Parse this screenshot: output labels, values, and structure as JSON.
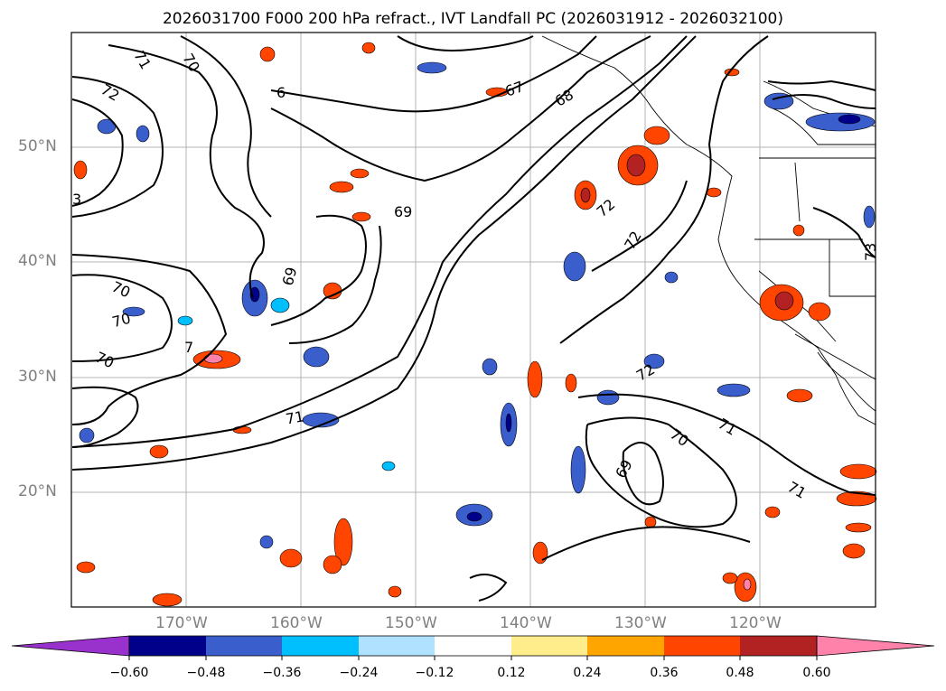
{
  "title": "2026031700 F000 200 hPa refract., IVT Landfall PC (2026031912 - 2026032100)",
  "map": {
    "lat_labels": [
      "50°N",
      "40°N",
      "30°N",
      "20°N"
    ],
    "lon_labels": [
      "170°W",
      "160°W",
      "150°W",
      "140°W",
      "130°W",
      "120°W"
    ],
    "contour_labels": [
      "71",
      "70",
      "72",
      "3",
      "6",
      "67",
      "68",
      "69",
      "70",
      "70",
      "7",
      "70",
      "69",
      "72",
      "72",
      "71",
      "72",
      "70",
      "71",
      "69",
      "71",
      "73"
    ]
  },
  "colorbar": {
    "ticks": [
      "−0.60",
      "−0.48",
      "−0.36",
      "−0.24",
      "−0.12",
      "0.12",
      "0.24",
      "0.36",
      "0.48",
      "0.60"
    ],
    "colors": [
      "#9932cc",
      "#00008b",
      "#3a5fcd",
      "#00bfff",
      "#b0e2ff",
      "#ffffff",
      "#ffec8b",
      "#ffa500",
      "#ff4500",
      "#b22222",
      "#ff82ab",
      "#ff82ab"
    ]
  }
}
